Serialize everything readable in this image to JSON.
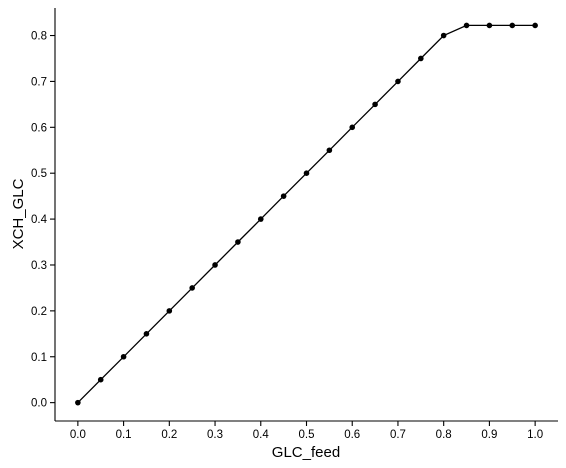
{
  "chart_data": {
    "type": "line",
    "title": "",
    "xlabel": "GLC_feed",
    "ylabel": "XCH_GLC",
    "xlim": [
      -0.05,
      1.05
    ],
    "ylim": [
      -0.04,
      0.86
    ],
    "grid": false,
    "x_ticks": [
      0.0,
      0.1,
      0.2,
      0.3,
      0.4,
      0.5,
      0.6,
      0.7,
      0.8,
      0.9,
      1.0
    ],
    "x_tick_labels": [
      "0.0",
      "0.1",
      "0.2",
      "0.3",
      "0.4",
      "0.5",
      "0.6",
      "0.7",
      "0.8",
      "0.9",
      "1.0"
    ],
    "y_ticks": [
      0.0,
      0.1,
      0.2,
      0.3,
      0.4,
      0.5,
      0.6,
      0.7,
      0.8
    ],
    "y_tick_labels": [
      "0.0",
      "0.1",
      "0.2",
      "0.3",
      "0.4",
      "0.5",
      "0.6",
      "0.7",
      "0.8"
    ],
    "series": [
      {
        "x": [
          0.0,
          0.05,
          0.1,
          0.15,
          0.2,
          0.25,
          0.3,
          0.35,
          0.4,
          0.45,
          0.5,
          0.55,
          0.6,
          0.65,
          0.7,
          0.75,
          0.8,
          0.85,
          0.9,
          0.95,
          1.0
        ],
        "y": [
          0.0,
          0.05,
          0.1,
          0.15,
          0.2,
          0.25,
          0.3,
          0.35,
          0.4,
          0.45,
          0.5,
          0.55,
          0.6,
          0.65,
          0.7,
          0.75,
          0.8,
          0.822,
          0.822,
          0.822,
          0.822
        ],
        "color": "#000000"
      }
    ]
  }
}
